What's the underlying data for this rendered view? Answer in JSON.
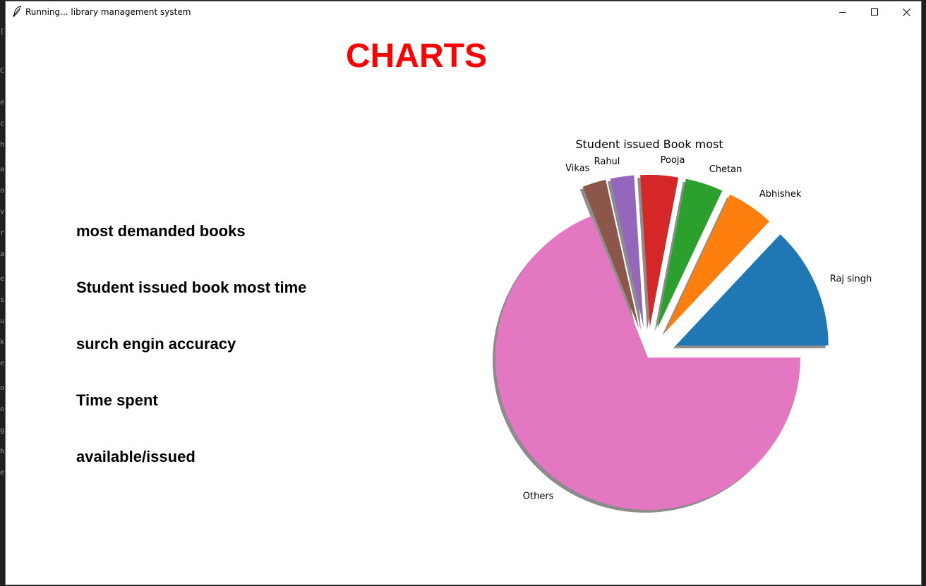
{
  "window": {
    "title": "Running... library management system"
  },
  "heading": "CHARTS",
  "menu": [
    {
      "label": "most demanded books"
    },
    {
      "label": "Student issued book most time"
    },
    {
      "label": "surch engin accuracy"
    },
    {
      "label": "Time spent"
    },
    {
      "label": "available/issued"
    }
  ],
  "chart_data": {
    "type": "pie",
    "title": "Student issued Book most",
    "shadow": true,
    "start_angle_deg": 0,
    "direction": "counterclockwise",
    "slices": [
      {
        "label": "Raj singh",
        "value": 13,
        "explode": 0.2,
        "color": "#1f77b4"
      },
      {
        "label": "Abhishek",
        "value": 5,
        "explode": 0.2,
        "color": "#ff7f0e"
      },
      {
        "label": "Chetan",
        "value": 4,
        "explode": 0.2,
        "color": "#2ca02c"
      },
      {
        "label": "Pooja",
        "value": 4,
        "explode": 0.2,
        "color": "#d62728"
      },
      {
        "label": "Rahul",
        "value": 2.5,
        "explode": 0.2,
        "color": "#9467bd"
      },
      {
        "label": "Vikas",
        "value": 2.5,
        "explode": 0.2,
        "color": "#8c564b"
      },
      {
        "label": "Others",
        "value": 69,
        "explode": 0,
        "color": "#e377c2"
      }
    ]
  }
}
